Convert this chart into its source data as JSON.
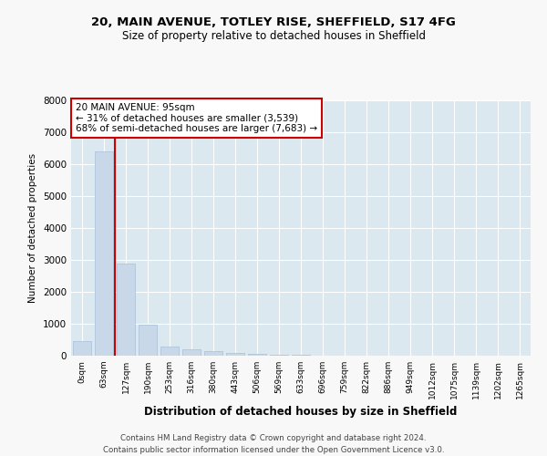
{
  "title_line1": "20, MAIN AVENUE, TOTLEY RISE, SHEFFIELD, S17 4FG",
  "title_line2": "Size of property relative to detached houses in Sheffield",
  "xlabel": "Distribution of detached houses by size in Sheffield",
  "ylabel": "Number of detached properties",
  "bar_color": "#c8d8e8",
  "bar_edge_color": "#a8c0d8",
  "property_line_color": "#cc0000",
  "annotation_title": "20 MAIN AVENUE: 95sqm",
  "annotation_line1": "← 31% of detached houses are smaller (3,539)",
  "annotation_line2": "68% of semi-detached houses are larger (7,683) →",
  "annotation_box_color": "#ffffff",
  "annotation_box_edge": "#cc0000",
  "categories": [
    "0sqm",
    "63sqm",
    "127sqm",
    "190sqm",
    "253sqm",
    "316sqm",
    "380sqm",
    "443sqm",
    "506sqm",
    "569sqm",
    "633sqm",
    "696sqm",
    "759sqm",
    "822sqm",
    "886sqm",
    "949sqm",
    "1012sqm",
    "1075sqm",
    "1139sqm",
    "1202sqm",
    "1265sqm"
  ],
  "values": [
    450,
    6400,
    2900,
    980,
    300,
    190,
    130,
    90,
    60,
    30,
    15,
    10,
    5,
    3,
    2,
    2,
    1,
    1,
    0,
    0,
    0
  ],
  "ylim": [
    0,
    8000
  ],
  "yticks": [
    0,
    1000,
    2000,
    3000,
    4000,
    5000,
    6000,
    7000,
    8000
  ],
  "fig_background": "#f8f8f8",
  "ax_background": "#dce8f0",
  "footer_line1": "Contains HM Land Registry data © Crown copyright and database right 2024.",
  "footer_line2": "Contains public sector information licensed under the Open Government Licence v3.0.",
  "property_line_x": 1.5
}
